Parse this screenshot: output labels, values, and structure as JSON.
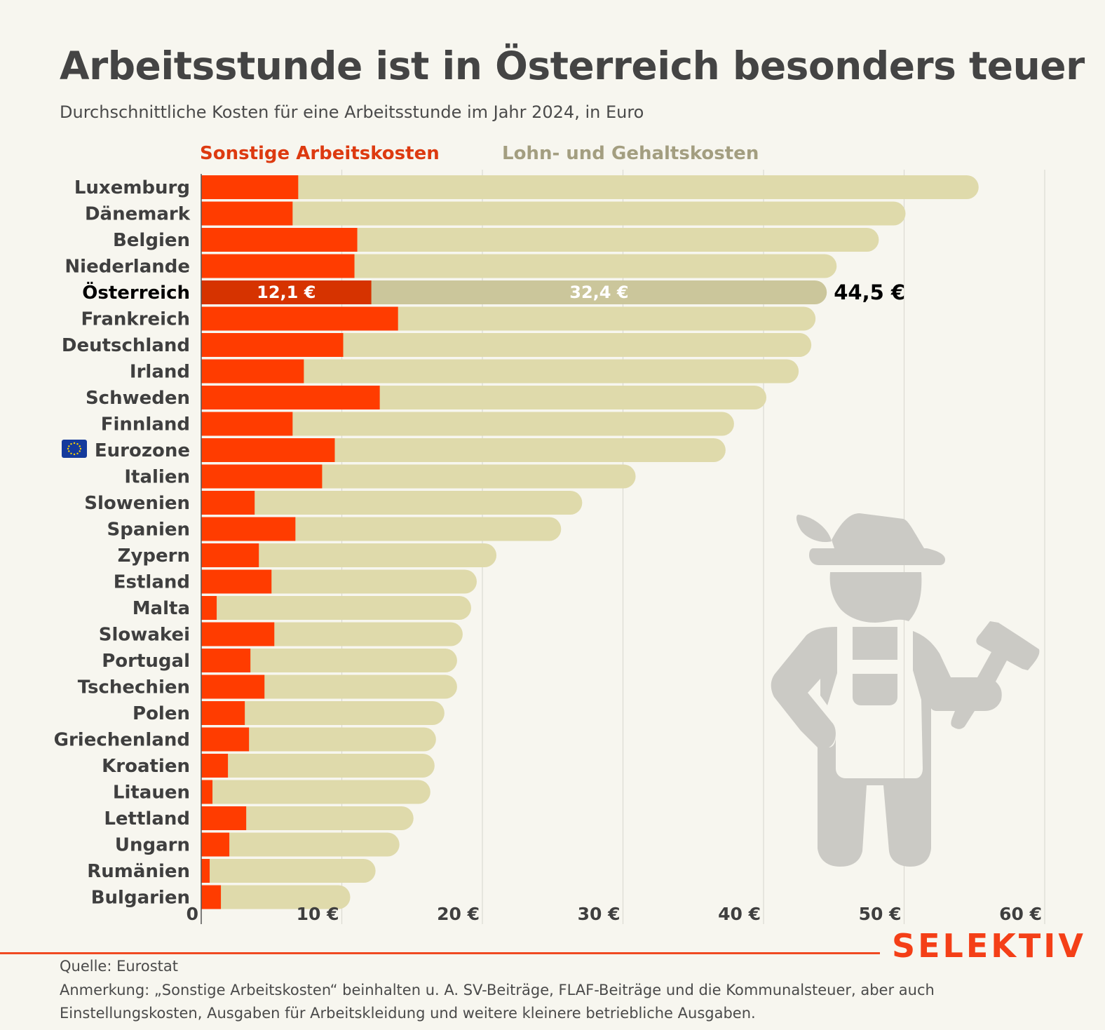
{
  "header": {
    "title": "Arbeitsstunde ist in Österreich besonders teuer",
    "subtitle": "Durchschnittliche Kosten für eine Arbeitsstunde im Jahr 2024, in Euro"
  },
  "colors": {
    "other_costs": "#ff3c00",
    "other_costs_highlight": "#d63300",
    "wage_costs": "#dfdaab",
    "wage_costs_highlight": "#cbc69b",
    "background": "#f7f6ef",
    "brand": "#f43f17"
  },
  "chart_data": {
    "type": "bar",
    "orientation": "horizontal",
    "stacked": true,
    "title": "Arbeitsstunde ist in Österreich besonders teuer",
    "subtitle": "Durchschnittliche Kosten für eine Arbeitsstunde im Jahr 2024, in Euro",
    "xlabel": "",
    "ylabel": "",
    "xlim": [
      0,
      60
    ],
    "x_ticks": [
      0,
      10,
      20,
      30,
      40,
      50,
      60
    ],
    "x_tick_labels": [
      "0",
      "10 €",
      "20 €",
      "30 €",
      "40 €",
      "50 €",
      "60 €"
    ],
    "grid": "vertical",
    "legend_position": "top-left",
    "highlight": "Österreich",
    "categories": [
      "Luxemburg",
      "Dänemark",
      "Belgien",
      "Niederlande",
      "Österreich",
      "Frankreich",
      "Deutschland",
      "Irland",
      "Schweden",
      "Finnland",
      "Eurozone",
      "Italien",
      "Slowenien",
      "Spanien",
      "Zypern",
      "Estland",
      "Malta",
      "Slowakei",
      "Portugal",
      "Tschechien",
      "Polen",
      "Griechenland",
      "Kroatien",
      "Litauen",
      "Lettland",
      "Ungarn",
      "Rumänien",
      "Bulgarien"
    ],
    "series": [
      {
        "name": "Sonstige Arbeitskosten",
        "values": [
          6.9,
          6.5,
          11.1,
          10.9,
          12.1,
          14.0,
          10.1,
          7.3,
          12.7,
          6.5,
          9.5,
          8.6,
          3.8,
          6.7,
          4.1,
          5.0,
          1.1,
          5.2,
          3.5,
          4.5,
          3.1,
          3.4,
          1.9,
          0.8,
          3.2,
          2.0,
          0.6,
          1.4
        ]
      },
      {
        "name": "Lohn- und Gehaltskosten",
        "values": [
          48.4,
          43.6,
          37.1,
          34.3,
          32.4,
          29.7,
          33.3,
          35.2,
          27.5,
          31.4,
          27.8,
          22.3,
          23.3,
          18.9,
          16.9,
          14.6,
          18.1,
          13.4,
          14.7,
          13.7,
          14.2,
          13.3,
          14.7,
          15.5,
          11.9,
          12.1,
          11.8,
          9.2
        ]
      }
    ],
    "totals": [
      55.3,
      50.1,
      48.2,
      45.2,
      44.5,
      43.7,
      43.4,
      42.5,
      40.2,
      37.9,
      37.3,
      30.9,
      27.1,
      25.6,
      21.0,
      19.6,
      19.2,
      18.6,
      18.2,
      18.2,
      17.3,
      16.7,
      16.6,
      16.3,
      15.1,
      14.1,
      12.4,
      10.6
    ],
    "annotations": {
      "highlight_other_label": "12,1 €",
      "highlight_wage_label": "32,4 €",
      "highlight_total_label": "44,5 €"
    }
  },
  "legend": {
    "other_costs": "Sonstige Arbeitskosten",
    "wage_costs": "Lohn- und Gehaltskosten"
  },
  "icons": {
    "eurozone_flag": "eu-flag-icon",
    "illustration": "worker-with-hat-and-hammer"
  },
  "footer": {
    "source": "Quelle: Eurostat",
    "note": "Anmerkung: „Sonstige Arbeitskosten“ beinhalten u. A. SV-Beiträge, FLAF-Beiträge und die Kommunalsteuer, aber auch Einstellungskosten, Ausgaben für Arbeitskleidung und weitere kleinere betriebliche Ausgaben.",
    "brand": "SELEKTIV"
  }
}
